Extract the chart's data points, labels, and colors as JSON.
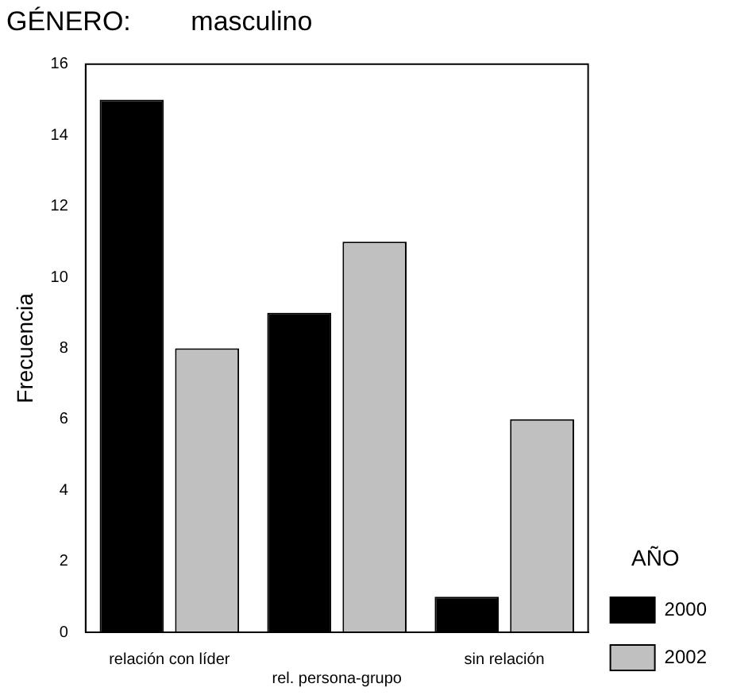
{
  "chart_data": {
    "type": "bar",
    "title": "GÉNERO:        masculino",
    "ylabel": "Frecuencia",
    "legend_title": "AÑO",
    "categories": [
      "relación con líder",
      "rel. persona-grupo",
      "sin relación"
    ],
    "series": [
      {
        "name": "2000",
        "color": "#000000",
        "values": [
          15,
          9,
          1
        ]
      },
      {
        "name": "2002",
        "color": "#c0c0c0",
        "values": [
          8,
          11,
          6
        ]
      }
    ],
    "ylim": [
      0,
      16
    ],
    "yticks": [
      0,
      2,
      4,
      6,
      8,
      10,
      12,
      14,
      16
    ],
    "grid": false,
    "legend": "right"
  }
}
